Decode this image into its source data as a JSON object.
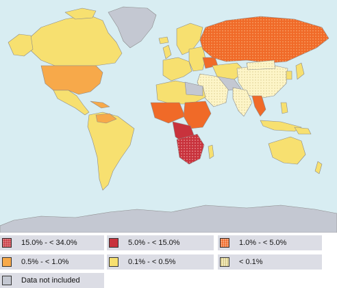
{
  "colors": {
    "ocean": "#d8edf2",
    "border": "#8a8a8a",
    "c15_34": "#c8323c",
    "c5_15": "#c8323c",
    "c1_5": "#f06a28",
    "c05_1": "#f7a94a",
    "c01_05": "#f7e070",
    "clt01": "#fdf5c8",
    "nodata": "#c4c8d2"
  },
  "legend": {
    "items": [
      {
        "label": "15.0% - < 34.0%",
        "color": "#c8323c",
        "pattern": "dots"
      },
      {
        "label": "5.0% - < 15.0%",
        "color": "#c8323c",
        "pattern": "none"
      },
      {
        "label": "1.0% - < 5.0%",
        "color": "#f06a28",
        "pattern": "dots"
      },
      {
        "label": "0.5% - < 1.0%",
        "color": "#f7a94a",
        "pattern": "none"
      },
      {
        "label": "0.1% - < 0.5%",
        "color": "#f7e070",
        "pattern": "none"
      },
      {
        "label": "< 0.1%",
        "color": "#fdf5c8",
        "pattern": "dots"
      },
      {
        "label": "Data not included",
        "color": "#c4c8d2",
        "pattern": "none"
      }
    ]
  }
}
